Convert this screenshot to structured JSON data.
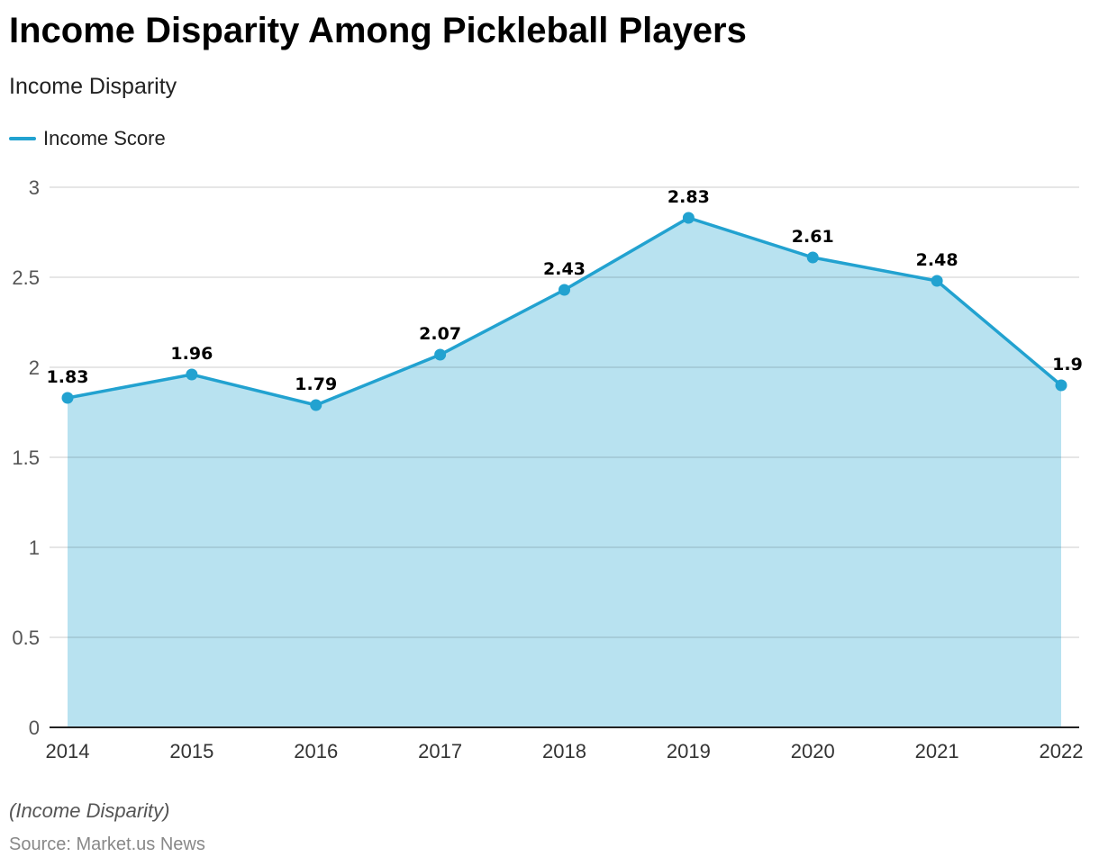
{
  "title": "Income Disparity Among Pickleball Players",
  "subtitle": "Income Disparity",
  "note": "(Income Disparity)",
  "source": "Source: Market.us News",
  "colors": {
    "line": "#22a2d0",
    "fill": "#b8e2f0"
  },
  "chart_data": {
    "type": "area",
    "categories": [
      "2014",
      "2015",
      "2016",
      "2017",
      "2018",
      "2019",
      "2020",
      "2021",
      "2022"
    ],
    "series": [
      {
        "name": "Income Score",
        "values": [
          1.83,
          1.96,
          1.79,
          2.07,
          2.43,
          2.83,
          2.61,
          2.48,
          1.9
        ]
      }
    ],
    "ylim": [
      0,
      3
    ],
    "yticks": [
      0,
      0.5,
      1,
      1.5,
      2,
      2.5,
      3
    ],
    "grid": true,
    "legend": "top-left"
  }
}
